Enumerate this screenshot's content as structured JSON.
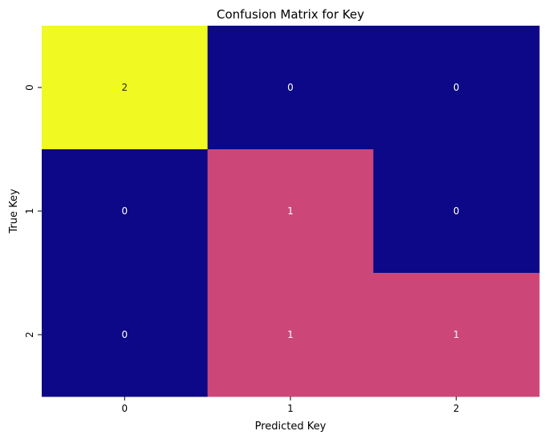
{
  "chart_data": {
    "type": "heatmap",
    "title": "Confusion Matrix for Key",
    "xlabel": "Predicted Key",
    "ylabel": "True Key",
    "x_categories": [
      "0",
      "1",
      "2"
    ],
    "y_categories": [
      "0",
      "1",
      "2"
    ],
    "values": [
      [
        2,
        0,
        0
      ],
      [
        0,
        1,
        0
      ],
      [
        0,
        1,
        1
      ]
    ],
    "colorbar": false,
    "colormap": "plasma",
    "colors": {
      "low": "#0d0887",
      "mid": "#cc4778",
      "high": "#f0f921",
      "annotation_light": "#ffffff",
      "annotation_dark": "#262626"
    }
  }
}
